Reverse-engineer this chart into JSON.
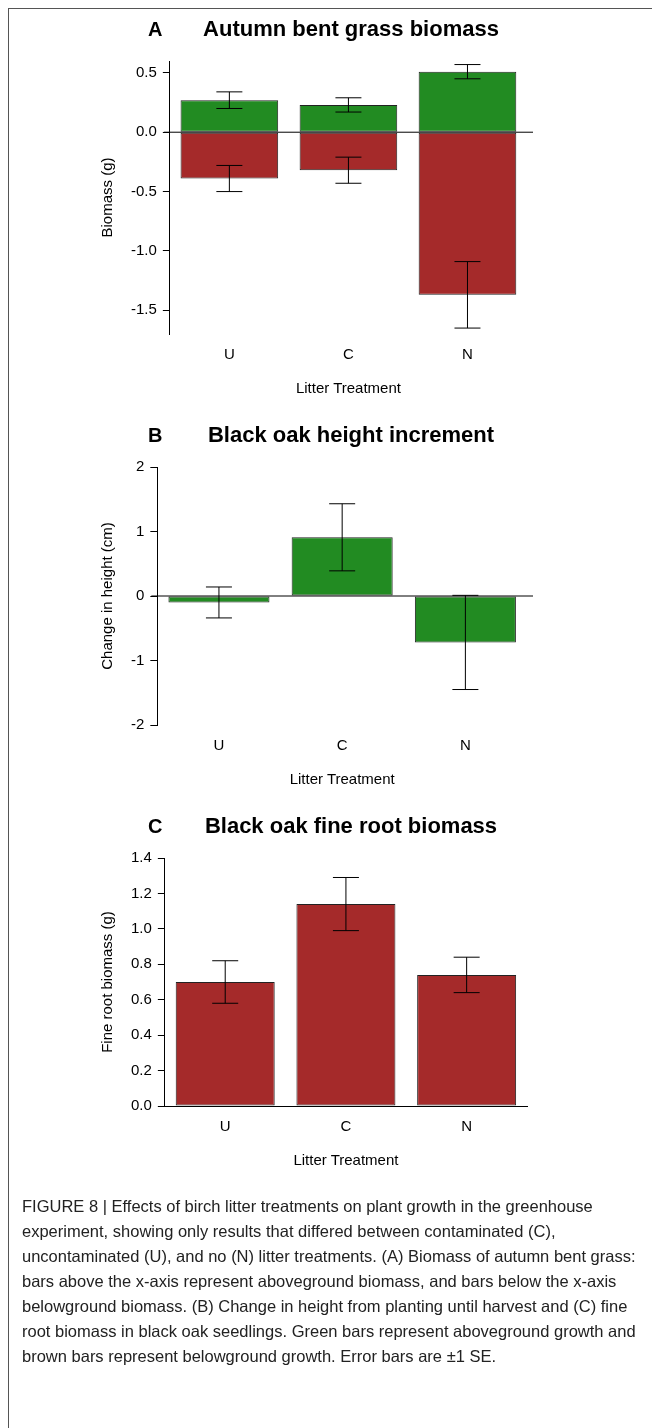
{
  "chart_data": [
    {
      "type": "bar",
      "title": "Autumn bent grass biomass",
      "annotations": [
        "A"
      ],
      "xlabel": "Litter Treatment",
      "ylabel": "Biomass (g)",
      "categories": [
        "U",
        "C",
        "N"
      ],
      "stacked": true,
      "series": [
        {
          "color": "#228b22",
          "values": [
            0.27,
            0.23,
            0.51
          ],
          "errors": [
            0.07,
            0.06,
            0.06
          ]
        },
        {
          "color": "#a52a2a",
          "values": [
            -0.39,
            -0.32,
            -1.37
          ],
          "errors": [
            0.11,
            0.11,
            0.28
          ]
        }
      ],
      "ylim": [
        -1.7,
        0.6
      ],
      "yticks": [
        {
          "value": -1.5,
          "label": "-1.5"
        },
        {
          "value": -1,
          "label": "-1.0"
        },
        {
          "value": -0.5,
          "label": "-0.5"
        },
        {
          "value": 0,
          "label": "0.0"
        },
        {
          "value": 0.5,
          "label": "0.5"
        }
      ],
      "ref_lines": [
        {
          "axis": "y",
          "value": 0,
          "color": "#000000"
        }
      ],
      "grid": false,
      "legend": false
    },
    {
      "type": "bar",
      "title": "Black oak height increment",
      "annotations": [
        "B"
      ],
      "xlabel": "Litter Treatment",
      "ylabel": "Change in height (cm)",
      "categories": [
        "U",
        "C",
        "N"
      ],
      "series": [
        {
          "color": "#228b22",
          "values": [
            -0.1,
            0.91,
            -0.72
          ],
          "errors": [
            0.24,
            0.52,
            0.73
          ]
        }
      ],
      "ylim": [
        -2,
        2
      ],
      "yticks": [
        -2,
        -1,
        0,
        1,
        2
      ],
      "ref_lines": [
        {
          "axis": "y",
          "value": 0,
          "color": "#000000"
        }
      ],
      "grid": false,
      "legend": false
    },
    {
      "type": "bar",
      "title": "Black oak fine root biomass",
      "annotations": [
        "C",
        "FIGURE 8 | Effects of birch litter treatments on plant growth in the greenhouse experiment, showing only results that differed between contaminated (C), uncontaminated (U), and no (N) litter treatments. (A) Biomass of autumn bent grass: bars above the x-axis represent aboveground biomass, and bars below the x-axis belowground biomass. (B) Change in height from planting until harvest and (C) fine root biomass in black oak seedlings. Green bars represent aboveground growth and brown bars represent belowground growth. Error bars are ±1 SE."
      ],
      "xlabel": "Litter Treatment",
      "ylabel": "Fine root biomass (g)",
      "categories": [
        "U",
        "C",
        "N"
      ],
      "series": [
        {
          "color": "#a52a2a",
          "values": [
            0.7,
            1.14,
            0.74
          ],
          "errors": [
            0.12,
            0.15,
            0.1
          ]
        }
      ],
      "ylim": [
        0,
        1.4
      ],
      "yticks": [
        {
          "value": 0,
          "label": "0.0"
        },
        {
          "value": 0.2,
          "label": "0.2"
        },
        {
          "value": 0.4,
          "label": "0.4"
        },
        {
          "value": 0.6,
          "label": "0.6"
        },
        {
          "value": 0.8,
          "label": "0.8"
        },
        {
          "value": 1,
          "label": "1.0"
        },
        {
          "value": 1.2,
          "label": "1.2"
        },
        {
          "value": 1.4,
          "label": "1.4"
        }
      ],
      "grid": false,
      "legend": false
    }
  ]
}
